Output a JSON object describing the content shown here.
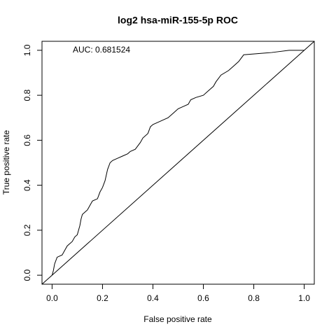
{
  "chart_data": {
    "type": "line",
    "title": "log2 hsa-miR-155-5p ROC",
    "xlabel": "False positive rate",
    "ylabel": "True positive rate",
    "annotation": "AUC: 0.681524",
    "xlim": [
      -0.04,
      1.04
    ],
    "ylim": [
      -0.04,
      1.04
    ],
    "xticks": [
      {
        "value": 0,
        "label": "0.0"
      },
      0.2,
      0.4,
      0.6,
      0.8,
      {
        "value": 1,
        "label": "1.0"
      }
    ],
    "yticks": [
      {
        "value": 0,
        "label": "0.0"
      },
      0.2,
      0.4,
      0.6,
      0.8,
      {
        "value": 1,
        "label": "1.0"
      }
    ],
    "series": [
      {
        "color": "#000000",
        "x": [
          0,
          0.005,
          0.01,
          0.02,
          0.04,
          0.05,
          0.06,
          0.08,
          0.09,
          0.1,
          0.11,
          0.115,
          0.12,
          0.13,
          0.14,
          0.15,
          0.16,
          0.18,
          0.19,
          0.2,
          0.21,
          0.22,
          0.23,
          0.24,
          0.26,
          0.28,
          0.3,
          0.31,
          0.33,
          0.35,
          0.36,
          0.38,
          0.39,
          0.4,
          0.42,
          0.44,
          0.46,
          0.48,
          0.5,
          0.52,
          0.54,
          0.55,
          0.57,
          0.6,
          0.62,
          0.64,
          0.65,
          0.67,
          0.7,
          0.72,
          0.74,
          0.76,
          0.87,
          0.94,
          1
        ],
        "values": [
          0,
          0.02,
          0.05,
          0.08,
          0.09,
          0.11,
          0.13,
          0.15,
          0.17,
          0.18,
          0.22,
          0.25,
          0.27,
          0.28,
          0.29,
          0.31,
          0.33,
          0.34,
          0.37,
          0.39,
          0.42,
          0.47,
          0.5,
          0.51,
          0.52,
          0.53,
          0.54,
          0.55,
          0.56,
          0.59,
          0.61,
          0.63,
          0.66,
          0.67,
          0.68,
          0.69,
          0.7,
          0.72,
          0.74,
          0.75,
          0.76,
          0.78,
          0.79,
          0.8,
          0.82,
          0.84,
          0.86,
          0.89,
          0.91,
          0.93,
          0.95,
          0.98,
          0.99,
          1,
          1
        ]
      }
    ]
  }
}
